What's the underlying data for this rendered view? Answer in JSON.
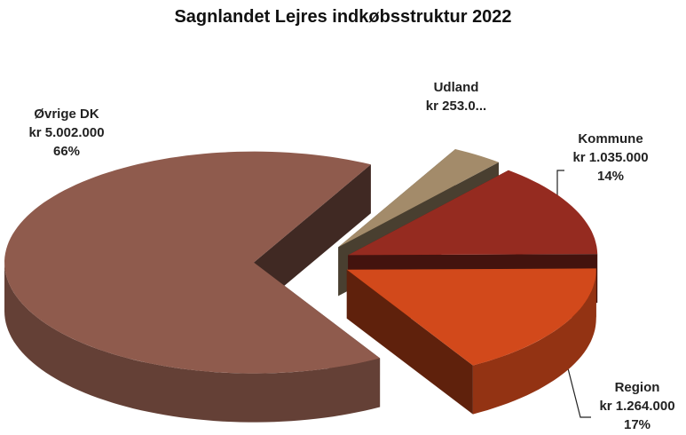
{
  "chart_data": {
    "type": "pie3d",
    "title": "Sagnlandet Lejres indkøbsstruktur 2022",
    "categories": [
      "Udland",
      "Kommune",
      "Region",
      "Øvrige DK"
    ],
    "values": [
      253000,
      1035000,
      1264000,
      5002000
    ],
    "value_labels": [
      "kr 253.0...",
      "kr 1.035.000",
      "kr 1.264.000",
      "kr 5.002.000"
    ],
    "percent_labels": [
      null,
      "14%",
      "17%",
      "66%"
    ],
    "colors": [
      "#a38b6a",
      "#952b20",
      "#d2491b",
      "#8f5b4d"
    ],
    "exploded": true
  }
}
